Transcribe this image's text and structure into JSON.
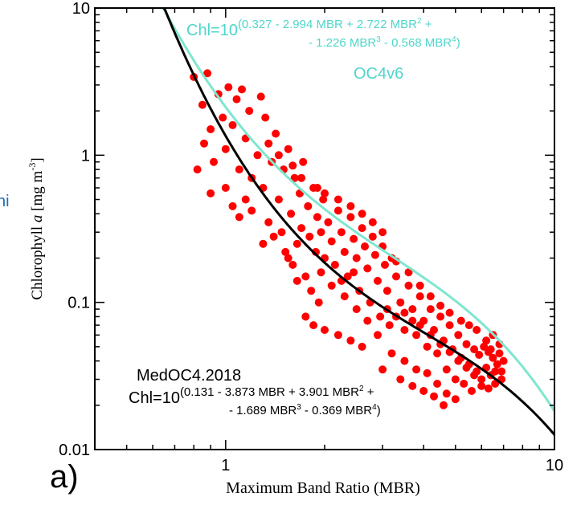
{
  "edge_text": "hi",
  "panel_label": "a)",
  "colors": {
    "oc4v6": "#7fe6cf",
    "oc4v6_text": "#4fd6cb",
    "medoc4": "#000000",
    "points": "#ff0000"
  },
  "chart_data": {
    "type": "scatter",
    "xlabel": "Maximum Band Ratio (MBR)",
    "ylabel": "Chlorophyll a [mg m-3]",
    "ylabel_main": "Chlorophyll",
    "ylabel_italic": "a",
    "ylabel_unit": "[mg m",
    "ylabel_sup": "-3",
    "ylabel_close": "]",
    "x_scale": "log",
    "y_scale": "log",
    "xlim": [
      0.4,
      10
    ],
    "ylim": [
      0.01,
      10
    ],
    "x_ticks": [
      {
        "value": 1,
        "label": "1"
      },
      {
        "value": 10,
        "label": "10"
      }
    ],
    "y_ticks": [
      {
        "value": 0.01,
        "label": "0.01"
      },
      {
        "value": 0.1,
        "label": "0.1"
      },
      {
        "value": 1,
        "label": "1"
      },
      {
        "value": 10,
        "label": "10"
      }
    ],
    "grid": false,
    "curves": [
      {
        "name": "OC4v6",
        "label": "OC4v6",
        "coeffs": [
          0.327,
          -2.994,
          2.722,
          -1.226,
          -0.568
        ],
        "equation_prefix": "Chl=10",
        "equation_line1": "(0.327 - 2.994 MBR  + 2.722 MBR",
        "equation_sup1": "2",
        "equation_tail1": " +",
        "equation_line2": "- 1.226 MBR",
        "equation_sup2": "3",
        "equation_mid2": " - 0.568 MBR",
        "equation_sup3": "4",
        "equation_tail2": ")"
      },
      {
        "name": "MedOC4.2018",
        "label": "MedOC4.2018",
        "coeffs": [
          0.131,
          -3.873,
          3.901,
          -1.689,
          -0.369
        ],
        "equation_prefix": "Chl=10",
        "equation_line1": "(0.131 - 3.873 MBR  + 3.901 MBR",
        "equation_sup1": "2",
        "equation_tail1": " +",
        "equation_line2": "- 1.689 MBR",
        "equation_sup2": "3",
        "equation_mid2": " - 0.369  MBR",
        "equation_sup3": "4",
        "equation_tail2": ")"
      }
    ],
    "points": [
      [
        0.8,
        3.4
      ],
      [
        0.85,
        2.2
      ],
      [
        0.88,
        3.6
      ],
      [
        0.9,
        1.5
      ],
      [
        0.82,
        0.8
      ],
      [
        0.86,
        1.2
      ],
      [
        0.92,
        0.9
      ],
      [
        0.95,
        2.6
      ],
      [
        0.98,
        1.8
      ],
      [
        1.0,
        1.1
      ],
      [
        1.02,
        2.9
      ],
      [
        1.05,
        1.6
      ],
      [
        1.08,
        2.4
      ],
      [
        1.1,
        0.8
      ],
      [
        1.12,
        2.8
      ],
      [
        1.15,
        1.3
      ],
      [
        1.18,
        2.0
      ],
      [
        1.2,
        0.7
      ],
      [
        0.9,
        0.55
      ],
      [
        1.0,
        0.6
      ],
      [
        1.05,
        0.45
      ],
      [
        1.1,
        0.38
      ],
      [
        1.15,
        0.5
      ],
      [
        1.2,
        0.42
      ],
      [
        1.25,
        1.0
      ],
      [
        1.28,
        2.5
      ],
      [
        1.3,
        0.6
      ],
      [
        1.32,
        1.8
      ],
      [
        1.35,
        0.35
      ],
      [
        1.38,
        0.9
      ],
      [
        1.4,
        0.28
      ],
      [
        1.42,
        1.4
      ],
      [
        1.45,
        0.5
      ],
      [
        1.48,
        0.3
      ],
      [
        1.5,
        0.8
      ],
      [
        1.52,
        0.22
      ],
      [
        1.55,
        1.1
      ],
      [
        1.58,
        0.4
      ],
      [
        1.6,
        0.18
      ],
      [
        1.62,
        0.7
      ],
      [
        1.65,
        0.25
      ],
      [
        1.68,
        0.55
      ],
      [
        1.7,
        0.32
      ],
      [
        1.72,
        0.9
      ],
      [
        1.75,
        0.15
      ],
      [
        1.78,
        0.45
      ],
      [
        1.8,
        0.28
      ],
      [
        1.82,
        0.12
      ],
      [
        1.85,
        0.6
      ],
      [
        1.88,
        0.22
      ],
      [
        1.9,
        0.38
      ],
      [
        1.92,
        0.1
      ],
      [
        1.95,
        0.3
      ],
      [
        1.98,
        0.5
      ],
      [
        2.0,
        0.2
      ],
      [
        2.05,
        0.35
      ],
      [
        2.1,
        0.26
      ],
      [
        2.15,
        0.18
      ],
      [
        2.2,
        0.42
      ],
      [
        2.25,
        0.3
      ],
      [
        2.3,
        0.22
      ],
      [
        2.35,
        0.15
      ],
      [
        2.4,
        0.38
      ],
      [
        2.45,
        0.27
      ],
      [
        2.5,
        0.2
      ],
      [
        2.55,
        0.12
      ],
      [
        2.6,
        0.32
      ],
      [
        2.65,
        0.24
      ],
      [
        2.7,
        0.17
      ],
      [
        2.75,
        0.1
      ],
      [
        2.8,
        0.28
      ],
      [
        2.85,
        0.21
      ],
      [
        2.9,
        0.14
      ],
      [
        2.95,
        0.08
      ],
      [
        3.0,
        0.24
      ],
      [
        3.05,
        0.18
      ],
      [
        3.1,
        0.12
      ],
      [
        3.15,
        0.07
      ],
      [
        3.2,
        0.2
      ],
      [
        3.3,
        0.15
      ],
      [
        3.4,
        0.1
      ],
      [
        3.5,
        0.065
      ],
      [
        3.6,
        0.13
      ],
      [
        3.7,
        0.09
      ],
      [
        3.8,
        0.06
      ],
      [
        3.9,
        0.11
      ],
      [
        4.0,
        0.075
      ],
      [
        4.1,
        0.05
      ],
      [
        4.2,
        0.09
      ],
      [
        4.3,
        0.065
      ],
      [
        4.4,
        0.045
      ],
      [
        4.5,
        0.08
      ],
      [
        4.6,
        0.055
      ],
      [
        4.7,
        0.035
      ],
      [
        4.8,
        0.07
      ],
      [
        4.9,
        0.048
      ],
      [
        5.0,
        0.03
      ],
      [
        5.1,
        0.06
      ],
      [
        5.2,
        0.042
      ],
      [
        5.3,
        0.028
      ],
      [
        5.4,
        0.052
      ],
      [
        5.5,
        0.038
      ],
      [
        5.6,
        0.025
      ],
      [
        5.7,
        0.048
      ],
      [
        5.8,
        0.034
      ],
      [
        5.9,
        0.044
      ],
      [
        6.0,
        0.03
      ],
      [
        6.1,
        0.05
      ],
      [
        6.2,
        0.036
      ],
      [
        6.3,
        0.046
      ],
      [
        6.4,
        0.032
      ],
      [
        6.5,
        0.042
      ],
      [
        6.6,
        0.028
      ],
      [
        6.7,
        0.038
      ],
      [
        6.8,
        0.045
      ],
      [
        6.9,
        0.034
      ],
      [
        6.5,
        0.06
      ],
      [
        6.2,
        0.055
      ],
      [
        5.8,
        0.065
      ],
      [
        5.5,
        0.07
      ],
      [
        5.2,
        0.075
      ],
      [
        4.8,
        0.085
      ],
      [
        4.5,
        0.095
      ],
      [
        4.2,
        0.11
      ],
      [
        3.9,
        0.13
      ],
      [
        3.6,
        0.16
      ],
      [
        3.3,
        0.19
      ],
      [
        3.0,
        0.3
      ],
      [
        2.8,
        0.35
      ],
      [
        2.6,
        0.4
      ],
      [
        2.4,
        0.45
      ],
      [
        2.2,
        0.5
      ],
      [
        2.0,
        0.55
      ],
      [
        1.9,
        0.6
      ],
      [
        1.7,
        0.7
      ],
      [
        1.6,
        0.85
      ],
      [
        1.45,
        1.0
      ],
      [
        1.35,
        1.2
      ],
      [
        2.1,
        0.13
      ],
      [
        2.3,
        0.11
      ],
      [
        2.5,
        0.09
      ],
      [
        2.7,
        0.075
      ],
      [
        2.9,
        0.06
      ],
      [
        3.2,
        0.045
      ],
      [
        3.5,
        0.04
      ],
      [
        3.8,
        0.035
      ],
      [
        4.1,
        0.033
      ],
      [
        4.4,
        0.028
      ],
      [
        4.7,
        0.024
      ],
      [
        5.0,
        0.022
      ],
      [
        1.75,
        0.08
      ],
      [
        1.85,
        0.07
      ],
      [
        2.0,
        0.065
      ],
      [
        2.2,
        0.06
      ],
      [
        2.4,
        0.055
      ],
      [
        2.6,
        0.05
      ],
      [
        3.0,
        0.035
      ],
      [
        3.4,
        0.03
      ],
      [
        3.7,
        0.027
      ],
      [
        4.0,
        0.025
      ],
      [
        4.3,
        0.023
      ],
      [
        4.6,
        0.02
      ],
      [
        3.1,
        0.09
      ],
      [
        3.3,
        0.08
      ],
      [
        3.5,
        0.085
      ],
      [
        3.7,
        0.075
      ],
      [
        3.9,
        0.07
      ],
      [
        4.2,
        0.06
      ],
      [
        4.5,
        0.052
      ],
      [
        4.8,
        0.046
      ],
      [
        5.1,
        0.04
      ],
      [
        5.4,
        0.036
      ],
      [
        5.7,
        0.032
      ],
      [
        6.0,
        0.027
      ],
      [
        6.3,
        0.026
      ],
      [
        6.6,
        0.034
      ],
      [
        6.9,
        0.03
      ],
      [
        7.0,
        0.04
      ],
      [
        6.8,
        0.052
      ],
      [
        6.4,
        0.048
      ],
      [
        1.3,
        0.25
      ],
      [
        1.55,
        0.2
      ],
      [
        1.65,
        0.14
      ],
      [
        1.95,
        0.16
      ],
      [
        2.25,
        0.14
      ],
      [
        2.45,
        0.16
      ]
    ]
  }
}
